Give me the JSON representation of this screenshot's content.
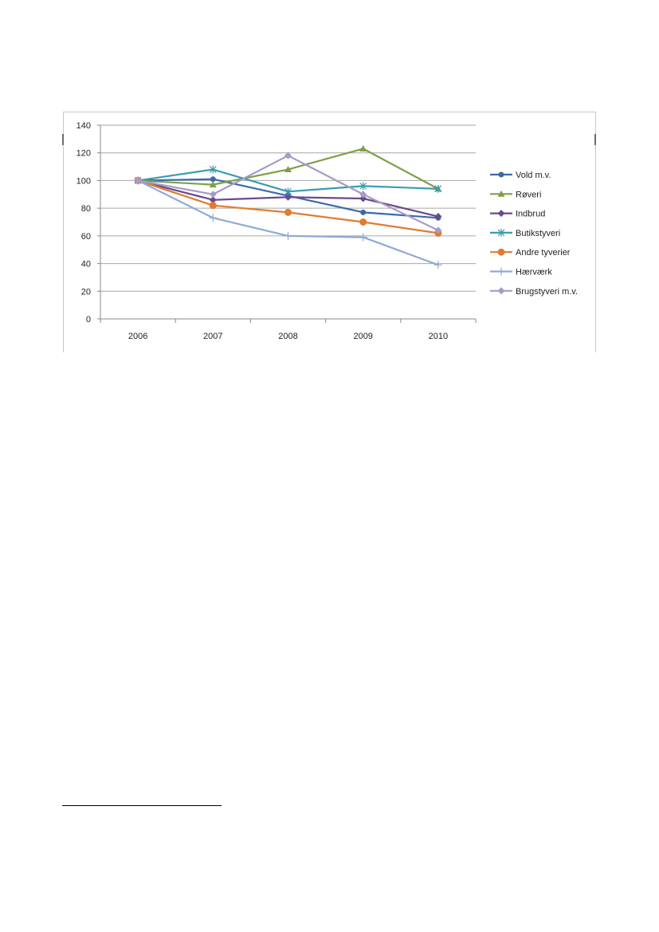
{
  "chart_data": {
    "type": "line",
    "title": "",
    "xlabel": "",
    "ylabel": "",
    "categories": [
      "2006",
      "2007",
      "2008",
      "2009",
      "2010"
    ],
    "ylim": [
      0,
      140
    ],
    "yticks": [
      "0",
      "20",
      "40",
      "60",
      "80",
      "100",
      "120",
      "140"
    ],
    "grid": true,
    "legend_position": "right",
    "series": [
      {
        "name": "Vold m.v.",
        "color": "#3C6AA8",
        "marker": "circle",
        "values": [
          100,
          101,
          89,
          77,
          73
        ]
      },
      {
        "name": "Røveri",
        "color": "#7DA046",
        "marker": "triangle",
        "values": [
          100,
          97,
          108,
          123,
          94
        ]
      },
      {
        "name": "Indbrud",
        "color": "#6A4A8E",
        "marker": "diamond",
        "values": [
          100,
          86,
          88,
          87,
          74
        ]
      },
      {
        "name": "Butikstyveri",
        "color": "#3A9CB0",
        "marker": "star",
        "values": [
          100,
          108,
          92,
          96,
          94
        ]
      },
      {
        "name": "Andre tyverier",
        "color": "#E07C30",
        "marker": "bigcircle",
        "values": [
          100,
          82,
          77,
          70,
          62
        ]
      },
      {
        "name": "Hærværk",
        "color": "#8EAAD6",
        "marker": "plus",
        "values": [
          100,
          73,
          60,
          59,
          39
        ]
      },
      {
        "name": "Brugstyveri m.v.",
        "color": "#A79BC7",
        "marker": "diamond",
        "values": [
          100,
          90,
          118,
          90,
          64
        ]
      }
    ]
  }
}
